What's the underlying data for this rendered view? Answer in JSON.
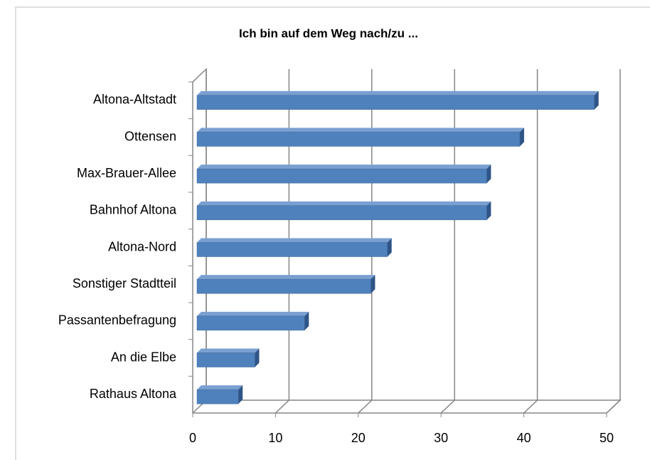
{
  "chart_data": {
    "type": "bar",
    "orientation": "horizontal",
    "title": "Ich bin auf dem Weg nach/zu ...",
    "categories": [
      "Altona-Altstadt",
      "Ottensen",
      "Max-Brauer-Allee",
      "Bahnhof Altona",
      "Altona-Nord",
      "Sonstiger Stadtteil",
      "Passantenbefragung",
      "An die Elbe",
      "Rathaus Altona"
    ],
    "values": [
      48,
      39,
      35,
      35,
      23,
      21,
      13,
      7,
      5
    ],
    "color": "#4f81bd",
    "xlim": [
      0,
      50
    ],
    "xticks": [
      0,
      10,
      20,
      30,
      40,
      50
    ],
    "grid": true
  }
}
